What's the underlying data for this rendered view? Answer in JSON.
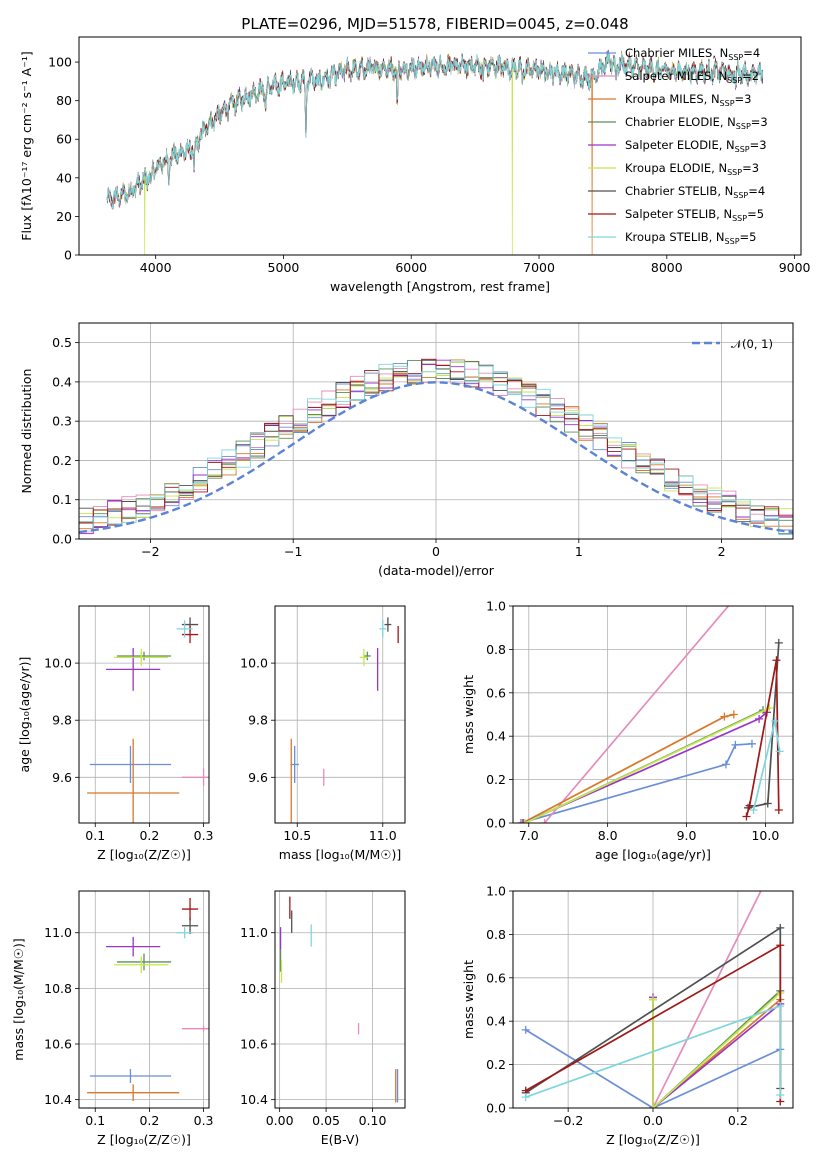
{
  "title": "PLATE=0296, MJD=51578, FIBERID=0045, z=0.048",
  "colors": {
    "Chabrier MILES": "#6a8fd8",
    "Salpeter MILES": "#e58cbb",
    "Kroupa MILES": "#d9782a",
    "Chabrier ELODIE": "#5d8f5d",
    "Salpeter ELODIE": "#9a35c9",
    "Kroupa ELODIE": "#c4e84a",
    "Chabrier STELIB": "#505050",
    "Salpeter STELIB": "#a01818",
    "Kroupa STELIB": "#7fd6da"
  },
  "chart_data": [
    {
      "id": "spectrum",
      "type": "line",
      "xlabel": "wavelength [Angstrom, rest frame]",
      "ylabel": "Flux [fλ10⁻¹⁷ erg cm⁻² s⁻¹ A⁻¹]",
      "xlim": [
        3400,
        9050
      ],
      "ylim": [
        0,
        113
      ],
      "xticks": [
        4000,
        5000,
        6000,
        7000,
        8000,
        9000
      ],
      "yticks": [
        0,
        20,
        40,
        60,
        80,
        100
      ],
      "legend": [
        "Chabrier MILES, N_SSP=4",
        "Salpeter MILES, N_SSP=2",
        "Kroupa MILES, N_SSP=3",
        "Chabrier ELODIE, N_SSP=3",
        "Salpeter ELODIE, N_SSP=3",
        "Kroupa ELODIE, N_SSP=3",
        "Chabrier STELIB, N_SSP=4",
        "Salpeter STELIB, N_SSP=5",
        "Kroupa STELIB, N_SSP=5"
      ],
      "legend_location": "right",
      "continuum": [
        [
          3620,
          28
        ],
        [
          3700,
          30
        ],
        [
          3800,
          33
        ],
        [
          3900,
          38
        ],
        [
          4000,
          45
        ],
        [
          4100,
          50
        ],
        [
          4200,
          53
        ],
        [
          4300,
          55
        ],
        [
          4400,
          67
        ],
        [
          4500,
          73
        ],
        [
          4600,
          78
        ],
        [
          4700,
          82
        ],
        [
          4800,
          85
        ],
        [
          4900,
          87
        ],
        [
          5000,
          89
        ],
        [
          5100,
          90
        ],
        [
          5200,
          91
        ],
        [
          5300,
          91
        ],
        [
          5400,
          93
        ],
        [
          5500,
          96
        ],
        [
          5600,
          96
        ],
        [
          5700,
          97
        ],
        [
          5800,
          97
        ],
        [
          5900,
          96
        ],
        [
          6000,
          97
        ],
        [
          6200,
          98
        ],
        [
          6400,
          98
        ],
        [
          6600,
          98
        ],
        [
          6800,
          97
        ],
        [
          7000,
          96
        ],
        [
          7200,
          94
        ],
        [
          7400,
          92
        ],
        [
          7550,
          100
        ],
        [
          7700,
          98
        ],
        [
          7900,
          96
        ],
        [
          8100,
          95
        ],
        [
          8300,
          95
        ],
        [
          8500,
          95
        ],
        [
          8750,
          94
        ]
      ],
      "absorption_features": [
        [
          3934,
          3
        ],
        [
          3968,
          5
        ],
        [
          4102,
          10
        ],
        [
          4300,
          12
        ],
        [
          4861,
          10
        ],
        [
          5175,
          30
        ],
        [
          5270,
          5
        ],
        [
          5890,
          20
        ],
        [
          6563,
          6
        ],
        [
          6870,
          8
        ],
        [
          7600,
          8
        ],
        [
          8500,
          6
        ],
        [
          8540,
          6
        ],
        [
          8660,
          6
        ]
      ],
      "dropouts": [
        {
          "series": "Kroupa ELODIE",
          "x": 3915,
          "y": 0
        },
        {
          "series": "Kroupa ELODIE",
          "x": 6790,
          "y": 0
        },
        {
          "series": "Kroupa MILES",
          "x": 7415,
          "y": 0
        }
      ]
    },
    {
      "id": "residuals",
      "type": "histogram",
      "xlabel": "(data-model)/error",
      "ylabel": "Normed distribution",
      "xlim": [
        -2.5,
        2.5
      ],
      "ylim": [
        0,
        0.55
      ],
      "xticks": [
        -2,
        -1,
        0,
        1,
        2
      ],
      "yticks": [
        0.0,
        0.1,
        0.2,
        0.3,
        0.4,
        0.5
      ],
      "grid": true,
      "bin_width": 0.1,
      "reference": {
        "name": "𝒩(0, 1)",
        "color": "#5b84d6",
        "style": "dashed",
        "mu": 0,
        "sigma": 1
      },
      "legend_location": "top-right"
    },
    {
      "id": "age_vs_Z",
      "type": "errorbar",
      "xlabel": "Z [log₁₀(Z/Z☉)]",
      "ylabel": "age  [log₁₀(age/yr)]",
      "xlim": [
        0.07,
        0.31
      ],
      "ylim": [
        9.44,
        10.2
      ],
      "xticks": [
        0.1,
        0.2,
        0.3
      ],
      "yticks": [
        9.6,
        9.8,
        10.0
      ],
      "grid": true,
      "points": [
        {
          "series": "Chabrier MILES",
          "x": 0.165,
          "xerr": 0.075,
          "y": 9.645,
          "yerr": 0.065
        },
        {
          "series": "Salpeter MILES",
          "x": 0.3,
          "xerr": 0.04,
          "y": 9.6,
          "yerr": 0.03
        },
        {
          "series": "Kroupa MILES",
          "x": 0.17,
          "xerr": 0.085,
          "y": 9.545,
          "yerr": 0.19
        },
        {
          "series": "Chabrier ELODIE",
          "x": 0.19,
          "xerr": 0.05,
          "y": 10.025,
          "yerr": 0.015
        },
        {
          "series": "Salpeter ELODIE",
          "x": 0.17,
          "xerr": 0.05,
          "y": 9.978,
          "yerr": 0.075
        },
        {
          "series": "Kroupa ELODIE",
          "x": 0.185,
          "xerr": 0.05,
          "y": 10.02,
          "yerr": 0.03
        },
        {
          "series": "Chabrier STELIB",
          "x": 0.275,
          "xerr": 0.015,
          "y": 10.135,
          "yerr": 0.025
        },
        {
          "series": "Salpeter STELIB",
          "x": 0.275,
          "xerr": 0.015,
          "y": 10.1,
          "yerr": 0.03
        },
        {
          "series": "Kroupa STELIB",
          "x": 0.265,
          "xerr": 0.015,
          "y": 10.12,
          "yerr": 0.03
        }
      ]
    },
    {
      "id": "age_vs_mass",
      "type": "errorbar",
      "xlabel": "mass [log₁₀(M/M☉)]",
      "ylabel": "",
      "xlim": [
        10.37,
        11.13
      ],
      "ylim": [
        9.44,
        10.2
      ],
      "xticks": [
        10.5,
        11.0
      ],
      "xticklabels": [
        "10.5",
        "11.0"
      ],
      "yticks": [
        9.6,
        9.8,
        10.0
      ],
      "grid": true,
      "points": [
        {
          "series": "Chabrier MILES",
          "x": 10.485,
          "xerr": 0.025,
          "y": 9.645,
          "yerr": 0.065
        },
        {
          "series": "Salpeter MILES",
          "x": 10.655,
          "xerr": 0.0,
          "y": 9.6,
          "yerr": 0.03
        },
        {
          "series": "Kroupa MILES",
          "x": 10.465,
          "xerr": 0.0,
          "y": 9.545,
          "yerr": 0.19
        },
        {
          "series": "Chabrier ELODIE",
          "x": 10.91,
          "xerr": 0.02,
          "y": 10.025,
          "yerr": 0.015
        },
        {
          "series": "Salpeter ELODIE",
          "x": 10.97,
          "xerr": 0.0,
          "y": 9.978,
          "yerr": 0.075
        },
        {
          "series": "Kroupa ELODIE",
          "x": 10.89,
          "xerr": 0.025,
          "y": 10.02,
          "yerr": 0.03
        },
        {
          "series": "Chabrier STELIB",
          "x": 11.03,
          "xerr": 0.02,
          "y": 10.135,
          "yerr": 0.025
        },
        {
          "series": "Salpeter STELIB",
          "x": 11.09,
          "xerr": 0.0,
          "y": 10.1,
          "yerr": 0.03
        },
        {
          "series": "Kroupa STELIB",
          "x": 11.0,
          "xerr": 0.02,
          "y": 10.12,
          "yerr": 0.03
        }
      ]
    },
    {
      "id": "massweight_vs_age",
      "type": "line",
      "xlabel": "age  [log₁₀(age/yr)]",
      "ylabel": "mass weight",
      "xlim": [
        6.8,
        10.35
      ],
      "ylim": [
        0,
        1.0
      ],
      "xticks": [
        7,
        8,
        9,
        10
      ],
      "yticks": [
        0.0,
        0.2,
        0.4,
        0.6,
        0.8,
        1.0
      ],
      "grid": true,
      "series": [
        {
          "name": "Chabrier MILES",
          "points": [
            [
              6.9,
              0
            ],
            [
              9.5,
              0.27
            ],
            [
              9.62,
              0.36
            ],
            [
              9.83,
              0.365
            ]
          ]
        },
        {
          "name": "Salpeter MILES",
          "points": [
            [
              7.2,
              0
            ],
            [
              9.95,
              1.18
            ]
          ]
        },
        {
          "name": "Kroupa MILES",
          "points": [
            [
              6.92,
              0
            ],
            [
              9.48,
              0.49
            ],
            [
              9.6,
              0.5
            ]
          ]
        },
        {
          "name": "Chabrier ELODIE",
          "points": [
            [
              6.95,
              0
            ],
            [
              9.97,
              0.52
            ]
          ]
        },
        {
          "name": "Salpeter ELODIE",
          "points": [
            [
              6.93,
              0
            ],
            [
              9.92,
              0.48
            ],
            [
              10.02,
              0.51
            ]
          ]
        },
        {
          "name": "Kroupa ELODIE",
          "points": [
            [
              6.95,
              0
            ],
            [
              10.05,
              0.53
            ]
          ]
        },
        {
          "name": "Chabrier STELIB",
          "points": [
            [
              9.78,
              0.07
            ],
            [
              10.03,
              0.09
            ],
            [
              10.17,
              0.83
            ]
          ]
        },
        {
          "name": "Salpeter STELIB",
          "points": [
            [
              9.76,
              0.03
            ],
            [
              9.8,
              0.08
            ],
            [
              10.14,
              0.75
            ],
            [
              10.17,
              0.06
            ]
          ]
        },
        {
          "name": "Kroupa STELIB",
          "points": [
            [
              9.85,
              0.06
            ],
            [
              10.12,
              0.47
            ],
            [
              10.18,
              0.33
            ]
          ]
        }
      ]
    },
    {
      "id": "mass_vs_Z",
      "type": "errorbar",
      "xlabel": "Z [log₁₀(Z/Z☉)]",
      "ylabel": "mass [log₁₀(M/M☉)]",
      "xlim": [
        0.07,
        0.31
      ],
      "ylim": [
        10.37,
        11.15
      ],
      "xticks": [
        0.1,
        0.2,
        0.3
      ],
      "yticks": [
        10.4,
        10.6,
        10.8,
        11.0
      ],
      "grid": true,
      "points": [
        {
          "series": "Chabrier MILES",
          "x": 0.165,
          "xerr": 0.075,
          "y": 10.485,
          "yerr": 0.025
        },
        {
          "series": "Salpeter MILES",
          "x": 0.3,
          "xerr": 0.04,
          "y": 10.655,
          "yerr": 0.0
        },
        {
          "series": "Kroupa MILES",
          "x": 0.17,
          "xerr": 0.085,
          "y": 10.425,
          "yerr": 0.03
        },
        {
          "series": "Chabrier ELODIE",
          "x": 0.19,
          "xerr": 0.05,
          "y": 10.895,
          "yerr": 0.03
        },
        {
          "series": "Salpeter ELODIE",
          "x": 0.17,
          "xerr": 0.05,
          "y": 10.95,
          "yerr": 0.035
        },
        {
          "series": "Kroupa ELODIE",
          "x": 0.185,
          "xerr": 0.05,
          "y": 10.885,
          "yerr": 0.03
        },
        {
          "series": "Chabrier STELIB",
          "x": 0.275,
          "xerr": 0.015,
          "y": 11.025,
          "yerr": 0.03
        },
        {
          "series": "Salpeter STELIB",
          "x": 0.275,
          "xerr": 0.015,
          "y": 11.085,
          "yerr": 0.04
        },
        {
          "series": "Kroupa STELIB",
          "x": 0.265,
          "xerr": 0.015,
          "y": 11.0,
          "yerr": 0.02
        }
      ]
    },
    {
      "id": "mass_vs_ebv",
      "type": "errorbar",
      "xlabel": "E(B-V)",
      "ylabel": "",
      "xlim": [
        -0.005,
        0.135
      ],
      "ylim": [
        10.37,
        11.15
      ],
      "xticks": [
        0.0,
        0.05,
        0.1
      ],
      "xticklabels": [
        "0.00",
        "0.05",
        "0.10"
      ],
      "yticks": [
        10.4,
        10.6,
        10.8,
        11.0
      ],
      "grid": true,
      "points": [
        {
          "series": "Chabrier MILES",
          "x": 0.127,
          "y": 10.45,
          "yerr": 0.06
        },
        {
          "series": "Salpeter MILES",
          "x": 0.085,
          "y": 10.655,
          "yerr": 0.02
        },
        {
          "series": "Kroupa MILES",
          "x": 0.125,
          "y": 10.45,
          "yerr": 0.06
        },
        {
          "series": "Chabrier ELODIE",
          "x": 0.001,
          "y": 10.9,
          "yerr": 0.04
        },
        {
          "series": "Salpeter ELODIE",
          "x": 0.001,
          "y": 10.98,
          "yerr": 0.04
        },
        {
          "series": "Kroupa ELODIE",
          "x": 0.002,
          "y": 10.86,
          "yerr": 0.04
        },
        {
          "series": "Chabrier STELIB",
          "x": 0.013,
          "y": 11.04,
          "yerr": 0.04
        },
        {
          "series": "Salpeter STELIB",
          "x": 0.011,
          "y": 11.09,
          "yerr": 0.04
        },
        {
          "series": "Kroupa STELIB",
          "x": 0.034,
          "y": 10.99,
          "yerr": 0.04
        }
      ]
    },
    {
      "id": "massweight_vs_Z",
      "type": "line",
      "xlabel": "Z [log₁₀(Z/Z☉)]",
      "ylabel": "mass weight",
      "xlim": [
        -0.33,
        0.33
      ],
      "ylim": [
        0,
        1.0
      ],
      "xticks": [
        -0.2,
        0.0,
        0.2
      ],
      "xticklabels": [
        "−0.2",
        "0.0",
        "0.2"
      ],
      "yticks": [
        0.0,
        0.2,
        0.4,
        0.6,
        0.8,
        1.0
      ],
      "grid": true,
      "series": [
        {
          "name": "Chabrier MILES",
          "points": [
            [
              -0.3,
              0.36
            ],
            [
              0.0,
              0.0
            ],
            [
              0.3,
              0.27
            ]
          ]
        },
        {
          "name": "Salpeter MILES",
          "points": [
            [
              0.0,
              0.0
            ],
            [
              0.3,
              1.18
            ]
          ]
        },
        {
          "name": "Kroupa MILES",
          "points": [
            [
              0.0,
              0.5
            ],
            [
              0.0,
              0.0
            ],
            [
              0.3,
              0.5
            ]
          ]
        },
        {
          "name": "Chabrier ELODIE",
          "points": [
            [
              0.0,
              0.5
            ],
            [
              0.0,
              0.0
            ],
            [
              0.3,
              0.54
            ]
          ]
        },
        {
          "name": "Salpeter ELODIE",
          "points": [
            [
              0.0,
              0.51
            ],
            [
              0.0,
              0.0
            ],
            [
              0.3,
              0.48
            ]
          ]
        },
        {
          "name": "Kroupa ELODIE",
          "points": [
            [
              0.0,
              0.5
            ],
            [
              0.0,
              0.0
            ],
            [
              0.3,
              0.53
            ]
          ]
        },
        {
          "name": "Chabrier STELIB",
          "points": [
            [
              -0.3,
              0.07
            ],
            [
              0.3,
              0.83
            ],
            [
              0.3,
              0.09
            ]
          ]
        },
        {
          "name": "Salpeter STELIB",
          "points": [
            [
              -0.3,
              0.08
            ],
            [
              0.3,
              0.75
            ],
            [
              0.3,
              0.03
            ]
          ]
        },
        {
          "name": "Kroupa STELIB",
          "points": [
            [
              -0.3,
              0.05
            ],
            [
              0.3,
              0.47
            ],
            [
              0.3,
              0.06
            ]
          ]
        }
      ]
    }
  ]
}
